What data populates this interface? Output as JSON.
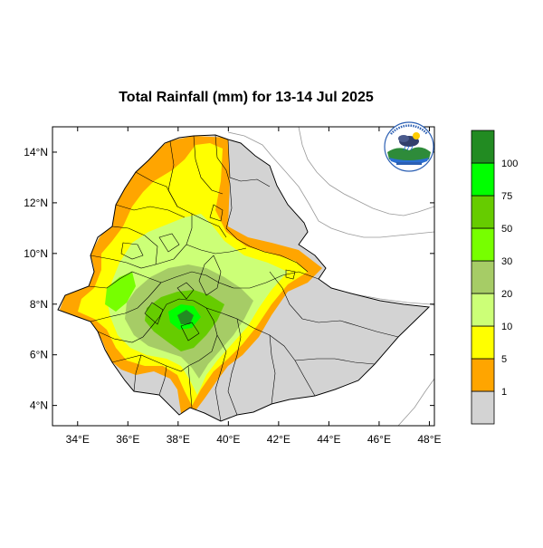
{
  "title": "Total Rainfall (mm) for 13-14 Jul 2025",
  "map": {
    "lon_range": [
      33,
      48.2
    ],
    "lat_range": [
      3.2,
      15.0
    ],
    "x_ticks": [
      {
        "value": 34,
        "label": "34°E"
      },
      {
        "value": 36,
        "label": "36°E"
      },
      {
        "value": 38,
        "label": "38°E"
      },
      {
        "value": 40,
        "label": "40°E"
      },
      {
        "value": 42,
        "label": "42°E"
      },
      {
        "value": 44,
        "label": "44°E"
      },
      {
        "value": 46,
        "label": "46°E"
      },
      {
        "value": 48,
        "label": "48°E"
      }
    ],
    "y_ticks": [
      {
        "value": 4,
        "label": "4°N"
      },
      {
        "value": 6,
        "label": "6°N"
      },
      {
        "value": 8,
        "label": "8°N"
      },
      {
        "value": 10,
        "label": "10°N"
      },
      {
        "value": 12,
        "label": "12°N"
      },
      {
        "value": 14,
        "label": "14°N"
      }
    ],
    "colors": {
      "land_dry": "#d3d3d3",
      "lt1": "#d3d3d3",
      "1_5": "#ffa500",
      "5_10": "#ffff00",
      "10_20": "#ccff77",
      "20_30": "#a6cc66",
      "30_50": "#77ff00",
      "50_75": "#66cc00",
      "75_100": "#00ff00",
      "gt100": "#228b22",
      "boundary": "#000000",
      "coast": "#999999"
    }
  },
  "legend": {
    "bins": [
      {
        "color": "#d3d3d3"
      },
      {
        "color": "#ffa500"
      },
      {
        "color": "#ffff00"
      },
      {
        "color": "#ccff77"
      },
      {
        "color": "#a6cc66"
      },
      {
        "color": "#77ff00"
      },
      {
        "color": "#66cc00"
      },
      {
        "color": "#00ff00"
      },
      {
        "color": "#228b22"
      }
    ],
    "labels": [
      "1",
      "5",
      "10",
      "20",
      "30",
      "50",
      "75",
      "100"
    ]
  },
  "logo": {
    "icon": "meteorology-agency-logo"
  }
}
